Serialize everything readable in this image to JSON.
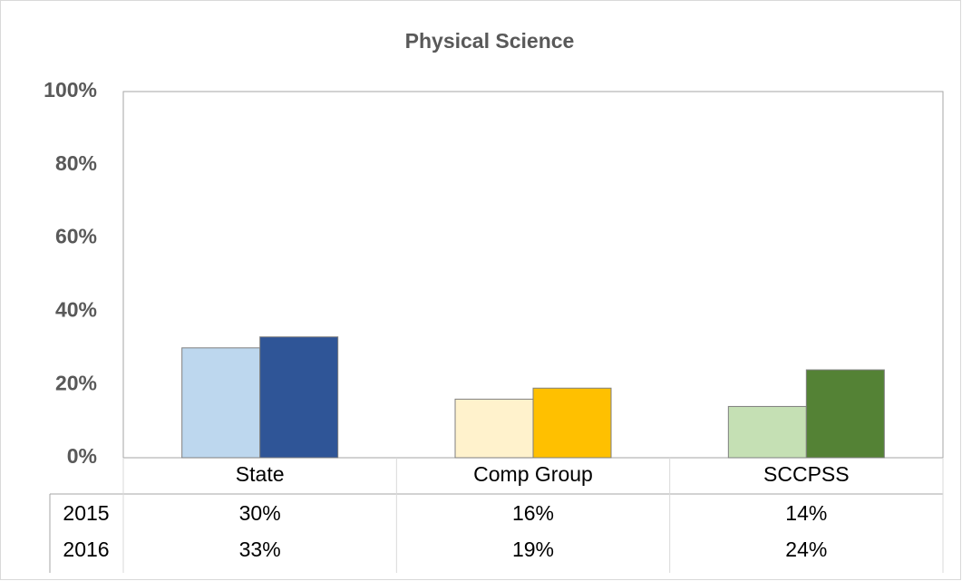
{
  "chart_data": {
    "type": "bar",
    "title": "Physical Science",
    "categories": [
      "State",
      "Comp Group",
      "SCCPSS"
    ],
    "series": [
      {
        "name": "2015",
        "color": [
          "#bdd7ee",
          "#fff2cc",
          "#c5e0b4"
        ],
        "values": [
          30,
          16,
          14
        ],
        "value_labels": [
          "30%",
          "16%",
          "14%"
        ]
      },
      {
        "name": "2016",
        "color": [
          "#2f5597",
          "#ffc000",
          "#548235"
        ],
        "values": [
          33,
          19,
          24
        ],
        "value_labels": [
          "33%",
          "19%",
          "24%"
        ]
      }
    ],
    "ylim": [
      0,
      100
    ],
    "yticks": [
      {
        "value": 0,
        "label": "0%"
      },
      {
        "value": 20,
        "label": "20%"
      },
      {
        "value": 40,
        "label": "40%"
      },
      {
        "value": 60,
        "label": "60%"
      },
      {
        "value": 80,
        "label": "80%"
      },
      {
        "value": 100,
        "label": "100%"
      }
    ],
    "grid": false
  }
}
